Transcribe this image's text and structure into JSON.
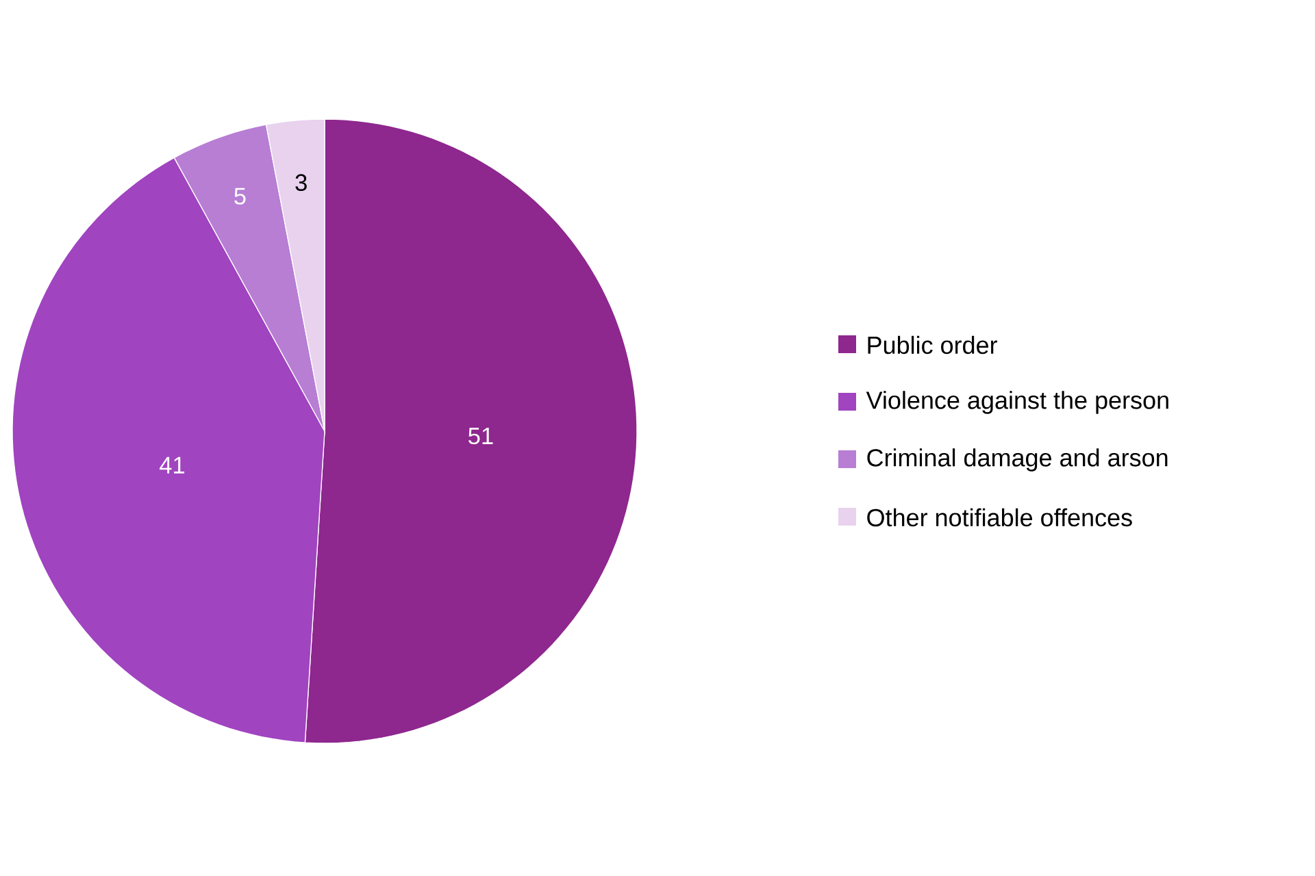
{
  "chart_data": {
    "type": "pie",
    "categories": [
      "Public order",
      "Violence against the person",
      "Criminal damage and arson",
      "Other notifiable offences"
    ],
    "values": [
      51,
      41,
      5,
      3
    ],
    "colors": [
      "#8e278e",
      "#a044c0",
      "#b77ed4",
      "#e8d2ee"
    ],
    "data_labels": true,
    "legend": "right"
  }
}
